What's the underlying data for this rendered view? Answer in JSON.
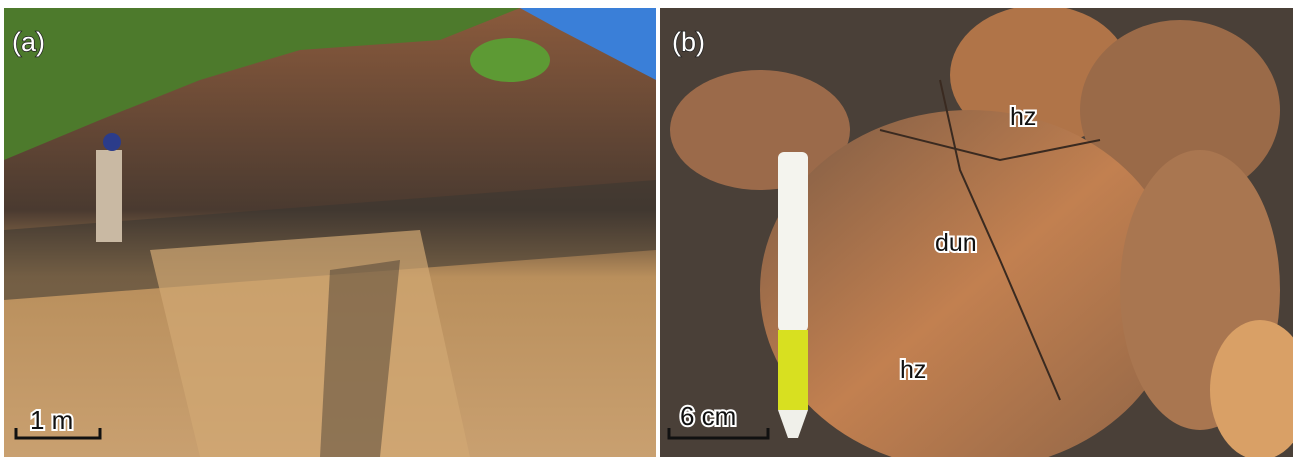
{
  "panels": [
    {
      "label": "(a)",
      "scale_bar": "1 m"
    },
    {
      "label": "(b)",
      "scale_bar": "6 cm",
      "annotations": [
        "hz",
        "dun",
        "hz"
      ]
    }
  ]
}
